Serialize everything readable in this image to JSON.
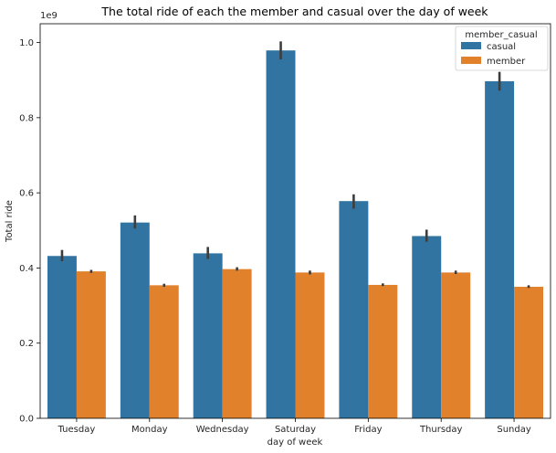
{
  "chart_data": {
    "type": "bar",
    "title": "The total ride of each the member and casual over the day  of week",
    "xlabel": "day of week",
    "ylabel": "Total ride",
    "offset_text": "1e9",
    "categories": [
      "Tuesday",
      "Monday",
      "Wednesday",
      "Saturday",
      "Friday",
      "Thursday",
      "Sunday"
    ],
    "ylim": [
      0,
      1.05
    ],
    "yticks": [
      "0.0",
      "0.2",
      "0.4",
      "0.6",
      "0.8",
      "1.0"
    ],
    "legend": {
      "title": "member_casual",
      "placement": "upper-right"
    },
    "grid": false,
    "series": [
      {
        "name": "casual",
        "color": "#3274a1",
        "values": [
          0.432,
          0.521,
          0.439,
          0.979,
          0.578,
          0.485,
          0.897
        ],
        "err_low": [
          0.418,
          0.505,
          0.424,
          0.955,
          0.558,
          0.47,
          0.872
        ],
        "err_high": [
          0.448,
          0.54,
          0.456,
          1.003,
          0.596,
          0.502,
          0.922
        ]
      },
      {
        "name": "member",
        "color": "#e1812c",
        "values": [
          0.391,
          0.354,
          0.397,
          0.388,
          0.355,
          0.388,
          0.35
        ],
        "err_low": [
          0.387,
          0.35,
          0.393,
          0.383,
          0.352,
          0.384,
          0.347
        ],
        "err_high": [
          0.395,
          0.358,
          0.402,
          0.393,
          0.359,
          0.393,
          0.354
        ]
      }
    ]
  }
}
